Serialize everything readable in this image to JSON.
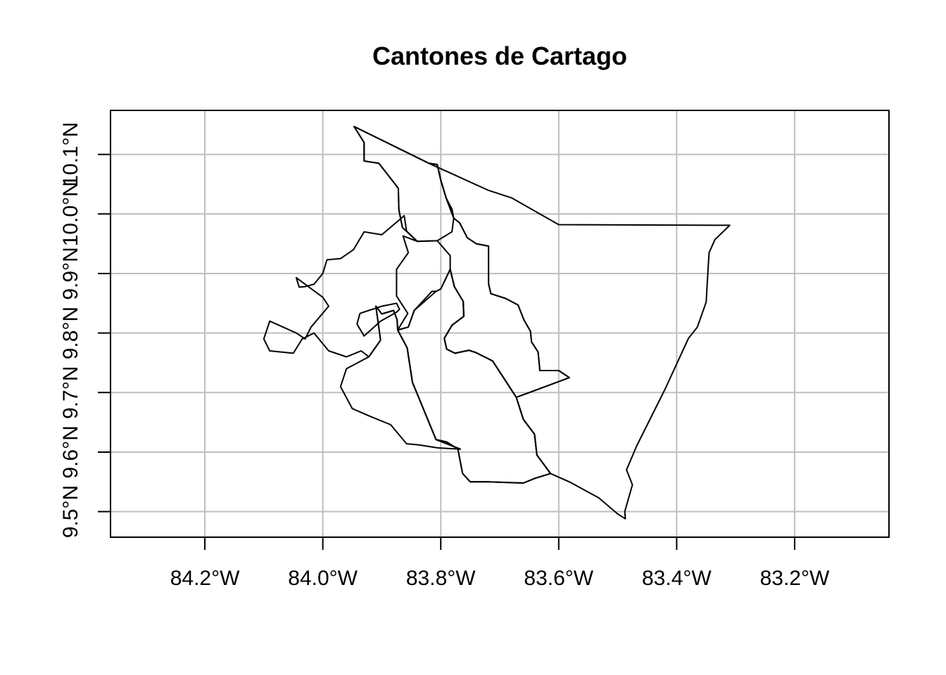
{
  "title": "Cantones de Cartago",
  "map": {
    "extent": {
      "lon": [
        -84.36,
        -83.04
      ],
      "lat": [
        9.457,
        10.174
      ]
    },
    "longitude_ticks": [
      {
        "value": -84.2,
        "label": "84.2°W"
      },
      {
        "value": -84.0,
        "label": "84.0°W"
      },
      {
        "value": -83.8,
        "label": "83.8°W"
      },
      {
        "value": -83.6,
        "label": "83.6°W"
      },
      {
        "value": -83.4,
        "label": "83.4°W"
      },
      {
        "value": -83.2,
        "label": "83.2°W"
      }
    ],
    "latitude_ticks": [
      {
        "value": 9.5,
        "label": "9.5°N"
      },
      {
        "value": 9.6,
        "label": "9.6°N"
      },
      {
        "value": 9.7,
        "label": "9.7°N"
      },
      {
        "value": 9.8,
        "label": "9.8°N"
      },
      {
        "value": 9.9,
        "label": "9.9°N"
      },
      {
        "value": 10.0,
        "label": "10.0°N"
      },
      {
        "value": 10.1,
        "label": "10.1°N"
      }
    ],
    "grid": true,
    "line_color": "#000000",
    "grid_color": "#bebebe",
    "cantons": [
      {
        "coords": [
          [
            -83.947,
            10.147
          ],
          [
            -83.93,
            10.12
          ],
          [
            -83.93,
            10.089
          ],
          [
            -83.905,
            10.085
          ],
          [
            -83.886,
            10.061
          ],
          [
            -83.872,
            10.043
          ],
          [
            -83.871,
            10.007
          ],
          [
            -83.865,
            9.977
          ],
          [
            -83.858,
            9.971
          ],
          [
            -83.84,
            9.954
          ],
          [
            -83.806,
            9.955
          ],
          [
            -83.781,
            9.97
          ],
          [
            -83.778,
            9.993
          ],
          [
            -83.791,
            10.027
          ],
          [
            -83.8,
            10.057
          ],
          [
            -83.806,
            10.083
          ],
          [
            -83.82,
            10.085
          ],
          [
            -83.947,
            10.147
          ]
        ]
      },
      {
        "coords": [
          [
            -83.806,
            10.083
          ],
          [
            -83.8,
            10.057
          ],
          [
            -83.791,
            10.027
          ],
          [
            -83.778,
            9.993
          ],
          [
            -83.768,
            9.985
          ],
          [
            -83.755,
            9.96
          ],
          [
            -83.74,
            9.95
          ],
          [
            -83.719,
            9.946
          ],
          [
            -83.719,
            9.883
          ],
          [
            -83.715,
            9.866
          ],
          [
            -83.69,
            9.858
          ],
          [
            -83.669,
            9.847
          ],
          [
            -83.659,
            9.822
          ],
          [
            -83.648,
            9.803
          ],
          [
            -83.646,
            9.785
          ],
          [
            -83.635,
            9.768
          ],
          [
            -83.632,
            9.737
          ],
          [
            -83.6,
            9.737
          ],
          [
            -83.582,
            9.725
          ],
          [
            -83.672,
            9.692
          ],
          [
            -83.712,
            9.753
          ],
          [
            -83.74,
            9.767
          ],
          [
            -83.752,
            9.771
          ],
          [
            -83.762,
            9.769
          ],
          [
            -83.776,
            9.766
          ],
          [
            -83.79,
            9.773
          ],
          [
            -83.794,
            9.791
          ],
          [
            -83.781,
            9.813
          ],
          [
            -83.761,
            9.828
          ],
          [
            -83.762,
            9.853
          ],
          [
            -83.777,
            9.878
          ],
          [
            -83.784,
            9.907
          ],
          [
            -83.784,
            9.93
          ],
          [
            -83.806,
            9.955
          ],
          [
            -83.84,
            9.954
          ],
          [
            -83.858,
            9.971
          ],
          [
            -83.865,
            9.977
          ],
          [
            -83.871,
            10.007
          ],
          [
            -83.872,
            10.043
          ],
          [
            -83.886,
            10.061
          ],
          [
            -83.905,
            10.085
          ],
          [
            -83.93,
            10.089
          ],
          [
            -83.93,
            10.12
          ],
          [
            -83.947,
            10.147
          ],
          [
            -83.82,
            10.085
          ],
          [
            -83.806,
            10.083
          ]
        ]
      },
      {
        "coords": [
          [
            -83.82,
            10.085
          ],
          [
            -83.72,
            10.04
          ],
          [
            -83.68,
            10.027
          ],
          [
            -83.6,
            9.982
          ],
          [
            -83.31,
            9.981
          ],
          [
            -83.335,
            9.957
          ],
          [
            -83.345,
            9.935
          ],
          [
            -83.348,
            9.886
          ],
          [
            -83.35,
            9.852
          ],
          [
            -83.365,
            9.81
          ],
          [
            -83.38,
            9.791
          ],
          [
            -83.42,
            9.705
          ],
          [
            -83.468,
            9.61
          ],
          [
            -83.485,
            9.57
          ],
          [
            -83.475,
            9.545
          ],
          [
            -83.488,
            9.5
          ],
          [
            -83.487,
            9.488
          ],
          [
            -83.5,
            9.496
          ],
          [
            -83.532,
            9.523
          ],
          [
            -83.58,
            9.549
          ],
          [
            -83.614,
            9.564
          ],
          [
            -83.637,
            9.595
          ],
          [
            -83.641,
            9.63
          ],
          [
            -83.66,
            9.655
          ],
          [
            -83.672,
            9.692
          ],
          [
            -83.582,
            9.725
          ],
          [
            -83.6,
            9.737
          ],
          [
            -83.632,
            9.737
          ],
          [
            -83.635,
            9.768
          ],
          [
            -83.646,
            9.785
          ],
          [
            -83.648,
            9.803
          ],
          [
            -83.659,
            9.822
          ],
          [
            -83.669,
            9.847
          ],
          [
            -83.69,
            9.858
          ],
          [
            -83.715,
            9.866
          ],
          [
            -83.719,
            9.883
          ],
          [
            -83.719,
            9.946
          ],
          [
            -83.74,
            9.95
          ],
          [
            -83.755,
            9.96
          ],
          [
            -83.768,
            9.985
          ],
          [
            -83.778,
            9.993
          ],
          [
            -83.781,
            10.008
          ],
          [
            -83.791,
            10.027
          ],
          [
            -83.8,
            10.057
          ],
          [
            -83.806,
            10.083
          ],
          [
            -83.82,
            10.085
          ]
        ]
      },
      {
        "coords": [
          [
            -83.672,
            9.692
          ],
          [
            -83.66,
            9.655
          ],
          [
            -83.641,
            9.63
          ],
          [
            -83.637,
            9.595
          ],
          [
            -83.614,
            9.564
          ],
          [
            -83.64,
            9.556
          ],
          [
            -83.66,
            9.548
          ],
          [
            -83.72,
            9.55
          ],
          [
            -83.75,
            9.55
          ],
          [
            -83.763,
            9.564
          ],
          [
            -83.771,
            9.605
          ],
          [
            -83.79,
            9.617
          ],
          [
            -83.808,
            9.621
          ],
          [
            -83.848,
            9.717
          ],
          [
            -83.857,
            9.775
          ],
          [
            -83.873,
            9.805
          ],
          [
            -83.855,
            9.81
          ],
          [
            -83.845,
            9.838
          ],
          [
            -83.815,
            9.87
          ],
          [
            -83.808,
            9.87
          ],
          [
            -83.8,
            9.874
          ],
          [
            -83.784,
            9.907
          ],
          [
            -83.777,
            9.878
          ],
          [
            -83.762,
            9.853
          ],
          [
            -83.761,
            9.828
          ],
          [
            -83.781,
            9.813
          ],
          [
            -83.794,
            9.791
          ],
          [
            -83.79,
            9.773
          ],
          [
            -83.776,
            9.766
          ],
          [
            -83.762,
            9.769
          ],
          [
            -83.752,
            9.771
          ],
          [
            -83.74,
            9.767
          ],
          [
            -83.712,
            9.753
          ],
          [
            -83.672,
            9.692
          ]
        ]
      },
      {
        "coords": [
          [
            -83.808,
            9.621
          ],
          [
            -83.79,
            9.617
          ],
          [
            -83.771,
            9.605
          ],
          [
            -83.763,
            9.564
          ],
          [
            -83.75,
            9.55
          ],
          [
            -83.72,
            9.55
          ],
          [
            -83.66,
            9.548
          ],
          [
            -83.64,
            9.556
          ],
          [
            -83.614,
            9.564
          ],
          [
            -83.637,
            9.595
          ],
          [
            -83.641,
            9.63
          ],
          [
            -83.66,
            9.655
          ],
          [
            -83.672,
            9.692
          ],
          [
            -83.712,
            9.753
          ],
          [
            -83.74,
            9.767
          ],
          [
            -83.752,
            9.771
          ],
          [
            -83.762,
            9.769
          ],
          [
            -83.776,
            9.766
          ],
          [
            -83.79,
            9.773
          ],
          [
            -83.794,
            9.791
          ],
          [
            -83.781,
            9.813
          ],
          [
            -83.761,
            9.828
          ],
          [
            -83.762,
            9.853
          ],
          [
            -83.777,
            9.878
          ],
          [
            -83.784,
            9.907
          ],
          [
            -83.8,
            9.874
          ],
          [
            -83.808,
            9.87
          ],
          [
            -83.845,
            9.838
          ],
          [
            -83.855,
            9.81
          ],
          [
            -83.873,
            9.805
          ],
          [
            -83.857,
            9.775
          ],
          [
            -83.848,
            9.717
          ],
          [
            -83.808,
            9.621
          ],
          [
            -83.767,
            9.605
          ],
          [
            -83.808,
            9.621
          ]
        ]
      },
      {
        "coords": [
          [
            -83.902,
            9.788
          ],
          [
            -83.922,
            9.76
          ],
          [
            -83.96,
            9.74
          ],
          [
            -83.97,
            9.71
          ],
          [
            -83.95,
            9.673
          ],
          [
            -83.92,
            9.66
          ],
          [
            -83.885,
            9.646
          ],
          [
            -83.858,
            9.614
          ],
          [
            -83.837,
            9.612
          ],
          [
            -83.805,
            9.607
          ],
          [
            -83.767,
            9.605
          ],
          [
            -83.808,
            9.621
          ],
          [
            -83.848,
            9.717
          ],
          [
            -83.857,
            9.775
          ],
          [
            -83.873,
            9.805
          ],
          [
            -83.874,
            9.822
          ],
          [
            -83.88,
            9.838
          ],
          [
            -83.9,
            9.832
          ],
          [
            -83.91,
            9.845
          ],
          [
            -83.902,
            9.788
          ]
        ]
      },
      {
        "coords": [
          [
            -83.902,
            9.788
          ],
          [
            -83.91,
            9.845
          ],
          [
            -83.9,
            9.832
          ],
          [
            -83.88,
            9.838
          ],
          [
            -83.874,
            9.822
          ],
          [
            -83.873,
            9.805
          ],
          [
            -83.856,
            9.833
          ],
          [
            -83.875,
            9.862
          ],
          [
            -83.875,
            9.907
          ],
          [
            -83.855,
            9.935
          ],
          [
            -83.864,
            9.963
          ],
          [
            -83.84,
            9.954
          ],
          [
            -83.858,
            9.971
          ],
          [
            -83.862,
            9.997
          ],
          [
            -83.9,
            9.965
          ],
          [
            -83.93,
            9.97
          ],
          [
            -83.948,
            9.94
          ],
          [
            -83.97,
            9.925
          ],
          [
            -83.993,
            9.923
          ],
          [
            -84.0,
            9.9
          ],
          [
            -84.015,
            9.882
          ],
          [
            -84.03,
            9.878
          ],
          [
            -84.04,
            9.877
          ],
          [
            -84.045,
            9.893
          ],
          [
            -84.0,
            9.86
          ],
          [
            -83.99,
            9.845
          ],
          [
            -84.02,
            9.81
          ],
          [
            -84.03,
            9.79
          ],
          [
            -84.045,
            9.8
          ],
          [
            -84.09,
            9.82
          ],
          [
            -84.1,
            9.79
          ],
          [
            -84.09,
            9.77
          ],
          [
            -84.05,
            9.766
          ],
          [
            -84.035,
            9.79
          ],
          [
            -84.015,
            9.8
          ],
          [
            -83.99,
            9.77
          ],
          [
            -83.96,
            9.76
          ],
          [
            -83.935,
            9.77
          ],
          [
            -83.922,
            9.76
          ],
          [
            -83.902,
            9.788
          ]
        ]
      },
      {
        "coords": [
          [
            -83.937,
            9.833
          ],
          [
            -83.9,
            9.845
          ],
          [
            -83.875,
            9.85
          ],
          [
            -83.87,
            9.84
          ],
          [
            -83.875,
            9.835
          ],
          [
            -83.902,
            9.82
          ],
          [
            -83.93,
            9.795
          ],
          [
            -83.942,
            9.815
          ],
          [
            -83.937,
            9.833
          ]
        ]
      }
    ]
  }
}
